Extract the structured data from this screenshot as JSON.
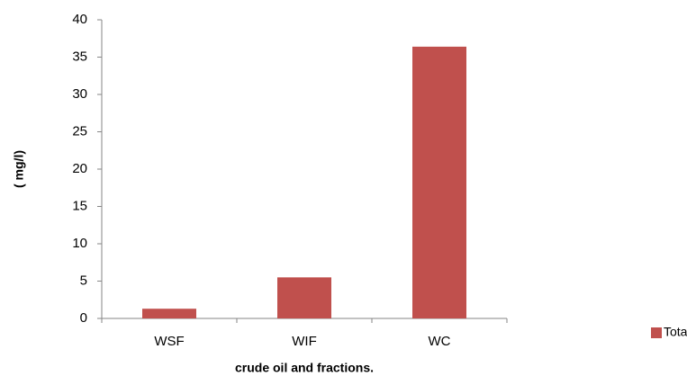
{
  "chart_data": {
    "type": "bar",
    "categories": [
      "WSF",
      "WIF",
      "WC"
    ],
    "series": [
      {
        "name": "Total PAH",
        "color": "#c0504d",
        "values": [
          1.3,
          5.5,
          36.4
        ]
      }
    ],
    "ylim": [
      0,
      40
    ],
    "yticks": [
      0,
      5,
      10,
      15,
      20,
      25,
      30,
      35,
      40
    ],
    "x_label": "crude oil and fractions.",
    "y_label": "( mg/l)",
    "legend": "right",
    "grid": false
  }
}
